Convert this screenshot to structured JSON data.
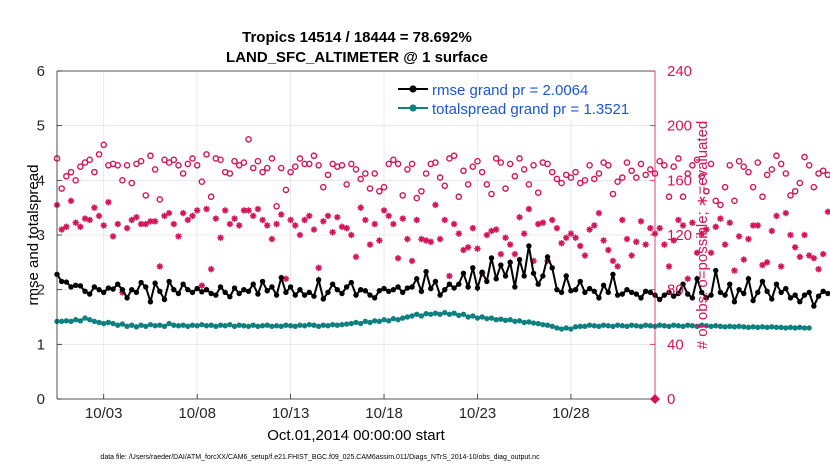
{
  "chart_data": {
    "type": "line",
    "title_line1": "Tropics 14514 / 18444 = 78.692%",
    "title_line2": "LAND_SFC_ALTIMETER @ 1 surface",
    "xlabel": "Oct.01,2014 00:00:00 start",
    "ylabel_left": "rmse and totalspread",
    "ylabel_right": "# of obs: o=possible; ∗=evaluated",
    "xlim": [
      0.5,
      32.5
    ],
    "ylim_left": [
      0,
      6
    ],
    "ylim_right": [
      0,
      240
    ],
    "x_ticks": [
      {
        "x": 3,
        "label": "10/03"
      },
      {
        "x": 8,
        "label": "10/08"
      },
      {
        "x": 13,
        "label": "10/13"
      },
      {
        "x": 18,
        "label": "10/18"
      },
      {
        "x": 23,
        "label": "10/23"
      },
      {
        "x": 28,
        "label": "10/28"
      }
    ],
    "y_ticks_left": [
      "0",
      "1",
      "2",
      "3",
      "4",
      "5",
      "6"
    ],
    "y_ticks_right": [
      "0",
      "40",
      "80",
      "120",
      "160",
      "200",
      "240"
    ],
    "footnote": "data file: /Users/raeder/DAI/ATM_forcXX/CAM6_setup/f.e21.FHIST_BGC.f09_025.CAM6assim.011/Diags_NTrS_2014-10/obs_diag_output.nc",
    "colors": {
      "rmse": "#000000",
      "spread": "#0e8080",
      "obs": "#d4145a",
      "legend_text": "#1a56db"
    },
    "series": [
      {
        "name": "rmse grand pr = 2.0064",
        "x_start": 0.5,
        "x_step": 0.25,
        "values": [
          2.28,
          2.15,
          2.14,
          2.05,
          2.08,
          2.07,
          1.97,
          1.92,
          2.05,
          2.0,
          1.95,
          2.03,
          2.01,
          2.1,
          2.0,
          1.85,
          2.0,
          1.95,
          2.13,
          2.05,
          1.78,
          2.12,
          1.97,
          1.82,
          2.15,
          2.0,
          1.93,
          2.1,
          2.0,
          1.95,
          2.02,
          1.96,
          2.0,
          1.93,
          1.9,
          2.05,
          1.95,
          1.87,
          2.03,
          1.93,
          2.0,
          1.97,
          2.1,
          1.92,
          2.15,
          1.98,
          2.05,
          1.9,
          2.22,
          1.95,
          2.05,
          1.9,
          2.0,
          1.9,
          1.95,
          1.88,
          2.18,
          1.83,
          1.95,
          2.1,
          2.0,
          1.93,
          2.05,
          2.13,
          1.9,
          2.0,
          1.98,
          1.9,
          1.85,
          1.98,
          2.02,
          1.97,
          2.0,
          2.05,
          1.95,
          2.03,
          2.05,
          2.2,
          1.97,
          2.33,
          2.02,
          2.15,
          1.9,
          2.0,
          2.1,
          2.03,
          2.1,
          2.3,
          2.05,
          2.4,
          2.03,
          2.32,
          2.15,
          2.58,
          2.2,
          2.45,
          2.25,
          2.5,
          2.05,
          2.55,
          2.25,
          2.8,
          2.3,
          2.1,
          2.25,
          2.6,
          2.4,
          2.0,
          1.95,
          2.25,
          1.98,
          2.0,
          2.15,
          1.95,
          2.02,
          1.97,
          1.85,
          2.08,
          1.95,
          2.28,
          1.9,
          1.92,
          2.0,
          1.95,
          1.92,
          1.85,
          1.97,
          1.95,
          1.9,
          1.82,
          1.9,
          1.95,
          1.88,
          1.93,
          2.1,
          1.92,
          1.85,
          2.2,
          1.95,
          1.85,
          1.9,
          2.35,
          1.95,
          1.9,
          2.1,
          1.78,
          2.0,
          1.93,
          2.2,
          1.8,
          1.95,
          2.15,
          1.97,
          1.83,
          2.1,
          1.95,
          2.02,
          1.85,
          1.9,
          1.78,
          1.9,
          1.95,
          1.7,
          1.88,
          1.97,
          1.93,
          1.95,
          1.8,
          1.92,
          1.75,
          1.88,
          1.72
        ]
      },
      {
        "name": "totalspread grand pr = 1.3521",
        "x_start": 0.5,
        "x_step": 0.25,
        "values": [
          1.42,
          1.42,
          1.43,
          1.42,
          1.45,
          1.43,
          1.48,
          1.45,
          1.42,
          1.4,
          1.38,
          1.4,
          1.38,
          1.35,
          1.37,
          1.33,
          1.35,
          1.32,
          1.35,
          1.33,
          1.36,
          1.34,
          1.35,
          1.33,
          1.38,
          1.35,
          1.34,
          1.35,
          1.33,
          1.35,
          1.34,
          1.36,
          1.34,
          1.35,
          1.33,
          1.35,
          1.34,
          1.36,
          1.33,
          1.35,
          1.34,
          1.33,
          1.35,
          1.33,
          1.34,
          1.35,
          1.33,
          1.34,
          1.33,
          1.35,
          1.34,
          1.33,
          1.35,
          1.34,
          1.36,
          1.35,
          1.33,
          1.35,
          1.34,
          1.36,
          1.35,
          1.36,
          1.37,
          1.38,
          1.4,
          1.38,
          1.42,
          1.4,
          1.43,
          1.42,
          1.45,
          1.43,
          1.47,
          1.45,
          1.48,
          1.5,
          1.52,
          1.55,
          1.52,
          1.56,
          1.55,
          1.57,
          1.55,
          1.58,
          1.55,
          1.57,
          1.53,
          1.55,
          1.5,
          1.52,
          1.48,
          1.5,
          1.47,
          1.48,
          1.45,
          1.46,
          1.44,
          1.45,
          1.42,
          1.43,
          1.4,
          1.41,
          1.39,
          1.38,
          1.36,
          1.35,
          1.33,
          1.3,
          1.28,
          1.3,
          1.28,
          1.32,
          1.33,
          1.33,
          1.35,
          1.34,
          1.33,
          1.35,
          1.34,
          1.33,
          1.35,
          1.34,
          1.33,
          1.35,
          1.34,
          1.33,
          1.35,
          1.34,
          1.33,
          1.35,
          1.34,
          1.33,
          1.35,
          1.34,
          1.33,
          1.35,
          1.34,
          1.33,
          1.35,
          1.34,
          1.33,
          1.34,
          1.33,
          1.32,
          1.33,
          1.32,
          1.33,
          1.32,
          1.31,
          1.32,
          1.31,
          1.32,
          1.31,
          1.32,
          1.31,
          1.31,
          1.3,
          1.31,
          1.3,
          1.31,
          1.3,
          1.3
        ]
      },
      {
        "name": "obs possible",
        "x_start": 0.5,
        "x_step": 0.25,
        "values": [
          176,
          154,
          163,
          166,
          160,
          170,
          173,
          175,
          166,
          179,
          186,
          171,
          172,
          171,
          160,
          171,
          158,
          172,
          174,
          149,
          178,
          168,
          146,
          175,
          173,
          175,
          171,
          165,
          172,
          176,
          171,
          159,
          179,
          148,
          176,
          175,
          166,
          165,
          174,
          171,
          173,
          190,
          169,
          174,
          166,
          169,
          176,
          141,
          169,
          153,
          166,
          170,
          176,
          172,
          172,
          178,
          171,
          155,
          164,
          172,
          170,
          171,
          157,
          172,
          168,
          161,
          165,
          154,
          165,
          152,
          155,
          172,
          175,
          172,
          149,
          168,
          172,
          147,
          152,
          165,
          172,
          173,
          162,
          156,
          176,
          178,
          148,
          167,
          157,
          170,
          174,
          166,
          157,
          150,
          176,
          173,
          154,
          172,
          163,
          176,
          168,
          157,
          171,
          151,
          173,
          172,
          166,
          161,
          158,
          164,
          162,
          166,
          158,
          160,
          171,
          161,
          165,
          173,
          171,
          150,
          159,
          162,
          173,
          167,
          162,
          172,
          164,
          168,
          165,
          174,
          171,
          148,
          170,
          176,
          148,
          165,
          171,
          175,
          163,
          152,
          172,
          145,
          142,
          155,
          171,
          145,
          174,
          170,
          166,
          155,
          173,
          148,
          164,
          168,
          178,
          172,
          165,
          149,
          152,
          158,
          177,
          171,
          155,
          165,
          167,
          164
        ]
      },
      {
        "name": "obs evaluated",
        "x_start": 0.5,
        "x_step": 0.25,
        "values": [
          142,
          124,
          126,
          145,
          129,
          126,
          132,
          131,
          140,
          134,
          127,
          144,
          119,
          128,
          78,
          125,
          131,
          133,
          128,
          128,
          130,
          130,
          97,
          134,
          136,
          128,
          119,
          136,
          131,
          134,
          138,
          83,
          139,
          95,
          132,
          118,
          138,
          128,
          132,
          127,
          138,
          138,
          134,
          139,
          131,
          127,
          117,
          128,
          135,
          88,
          131,
          127,
          120,
          131,
          134,
          124,
          96,
          130,
          134,
          122,
          133,
          126,
          125,
          120,
          104,
          140,
          131,
          113,
          128,
          116,
          138,
          134,
          128,
          103,
          132,
          117,
          101,
          131,
          117,
          116,
          115,
          142,
          117,
          131,
          90,
          128,
          121,
          109,
          111,
          125,
          110,
          92,
          120,
          123,
          124,
          106,
          118,
          113,
          106,
          133,
          121,
          139,
          101,
          128,
          129,
          101,
          131,
          125,
          114,
          118,
          121,
          118,
          112,
          105,
          124,
          127,
          136,
          116,
          109,
          101,
          97,
          131,
          117,
          105,
          115,
          130,
          113,
          125,
          121,
          125,
          113,
          97,
          116,
          131,
          127,
          88,
          129,
          107,
          121,
          124,
          107,
          126,
          132,
          113,
          129,
          94,
          119,
          102,
          117,
          127,
          127,
          98,
          100,
          123,
          134,
          97,
          136,
          120,
          111,
          104,
          120,
          105,
          103,
          95,
          106,
          137
        ]
      }
    ]
  }
}
